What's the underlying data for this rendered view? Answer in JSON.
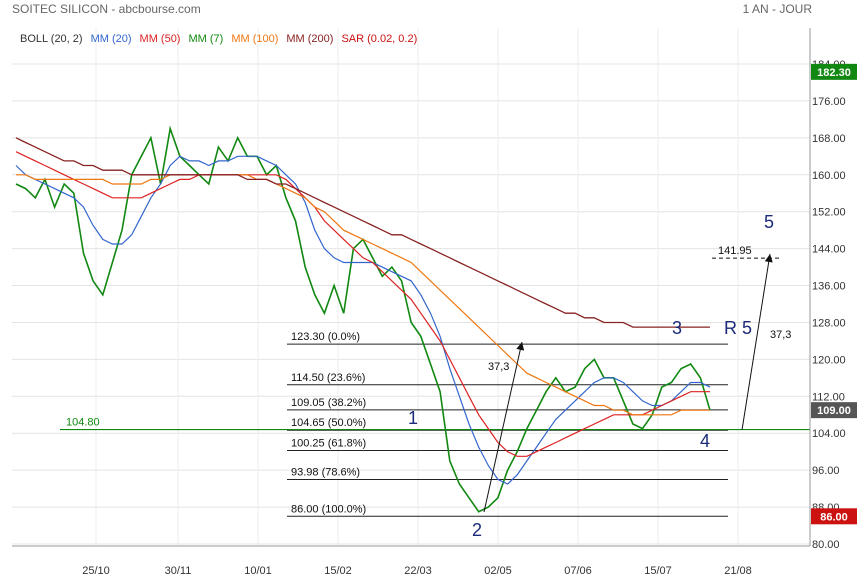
{
  "header": {
    "title": "SOITEC SILICON - abcbourse.com",
    "period": "1 AN - JOUR"
  },
  "legend": [
    {
      "label": "BOLL (20, 2)",
      "color": "#333333"
    },
    {
      "label": "MM (20)",
      "color": "#3366cc"
    },
    {
      "label": "MM (50)",
      "color": "#dd2222"
    },
    {
      "label": "MM (7)",
      "color": "#118811"
    },
    {
      "label": "MM (100)",
      "color": "#ee7711"
    },
    {
      "label": "MM (200)",
      "color": "#882222"
    },
    {
      "label": "SAR (0.02, 0.2)",
      "color": "#cc1111"
    }
  ],
  "chart_data": {
    "type": "line",
    "y_ticks": [
      "80.00",
      "88.00",
      "96.00",
      "104.00",
      "112.00",
      "120.00",
      "128.00",
      "136.00",
      "144.00",
      "152.00",
      "160.00",
      "168.00",
      "176.00",
      "184.00"
    ],
    "x_ticks": [
      "25/10",
      "30/11",
      "10/01",
      "15/02",
      "22/03",
      "02/05",
      "07/06",
      "15/07",
      "21/08"
    ],
    "ylim": [
      80,
      184
    ],
    "current_price": "109.00",
    "high_marker": "182.30",
    "low_marker": "86.00",
    "support_line": {
      "label": "104.80",
      "value": 104.8
    },
    "fibonacci": [
      {
        "label": "123.30  (0.0%)",
        "value": 123.3
      },
      {
        "label": "114.50  (23.6%)",
        "value": 114.5
      },
      {
        "label": "109.05  (38.2%)",
        "value": 109.05
      },
      {
        "label": "104.65  (50.0%)",
        "value": 104.65
      },
      {
        "label": "100.25  (61.8%)",
        "value": 100.25
      },
      {
        "label": "93.98  (78.6%)",
        "value": 93.98
      },
      {
        "label": "86.00  (100.0%)",
        "value": 86.0
      }
    ],
    "target": {
      "label": "141.95",
      "value": 141.95
    },
    "waves": [
      "1",
      "2",
      "3",
      "4",
      "5",
      "R 5"
    ],
    "measures": [
      "37,3",
      "37,3"
    ],
    "series": [
      {
        "name": "Cours",
        "values": [
          158,
          157,
          155,
          159,
          153,
          158,
          156,
          143,
          137,
          134,
          141,
          148,
          160,
          164,
          168,
          158,
          170,
          164,
          162,
          160,
          158,
          166,
          163,
          168,
          164,
          164,
          160,
          162,
          155,
          150,
          140,
          134,
          130,
          136,
          130,
          144,
          146,
          142,
          138,
          140,
          137,
          128,
          125,
          119,
          113,
          98,
          93,
          90,
          87,
          88,
          90,
          96,
          100,
          105,
          109,
          113,
          116,
          113,
          114,
          118,
          120,
          116,
          116,
          111,
          106,
          105,
          108,
          114,
          115,
          118,
          119,
          116,
          109
        ]
      },
      {
        "name": "MM (20)",
        "values": [
          162,
          160,
          159,
          158,
          157,
          156,
          155,
          153,
          149,
          146,
          145,
          145,
          147,
          151,
          155,
          158,
          162,
          164,
          163,
          163,
          162,
          163,
          163,
          164,
          164,
          164,
          163,
          162,
          160,
          158,
          154,
          148,
          144,
          142,
          141,
          141,
          141,
          141,
          140,
          139,
          138,
          137,
          134,
          130,
          125,
          118,
          112,
          106,
          101,
          97,
          94,
          93,
          95,
          98,
          101,
          104,
          107,
          109,
          111,
          113,
          115,
          116,
          116,
          115,
          113,
          111,
          110,
          110,
          111,
          113,
          115,
          115,
          114
        ]
      },
      {
        "name": "MM (50)",
        "values": [
          165,
          164,
          163,
          162,
          161,
          160,
          159,
          158,
          157,
          156,
          155,
          155,
          155,
          155,
          156,
          157,
          158,
          159,
          159,
          160,
          160,
          160,
          160,
          160,
          160,
          160,
          160,
          160,
          159,
          157,
          155,
          153,
          150,
          148,
          146,
          144,
          142,
          141,
          139,
          137,
          135,
          133,
          130,
          127,
          124,
          120,
          116,
          112,
          108,
          105,
          102,
          100,
          99,
          99,
          100,
          101,
          102,
          103,
          104,
          105,
          106,
          107,
          108,
          108,
          108,
          108,
          109,
          110,
          111,
          112,
          113,
          113,
          113
        ]
      },
      {
        "name": "MM (100)",
        "values": [
          160,
          160,
          159,
          159,
          159,
          159,
          159,
          159,
          159,
          159,
          158,
          158,
          158,
          158,
          159,
          159,
          160,
          160,
          160,
          160,
          160,
          160,
          160,
          160,
          160,
          159,
          159,
          158,
          157,
          156,
          155,
          153,
          152,
          150,
          148,
          147,
          146,
          145,
          144,
          143,
          142,
          141,
          139,
          137,
          135,
          133,
          131,
          129,
          127,
          125,
          123,
          121,
          119,
          117,
          116,
          115,
          114,
          113,
          112,
          111,
          110,
          110,
          109,
          109,
          108,
          108,
          108,
          108,
          108,
          109,
          109,
          109,
          109
        ]
      },
      {
        "name": "MM (200)",
        "values": [
          168,
          167,
          166,
          165,
          164,
          163,
          163,
          162,
          162,
          161,
          161,
          161,
          160,
          160,
          160,
          160,
          160,
          160,
          160,
          160,
          160,
          160,
          160,
          160,
          159,
          159,
          159,
          158,
          158,
          157,
          156,
          155,
          154,
          153,
          152,
          151,
          150,
          149,
          148,
          147,
          147,
          146,
          145,
          144,
          143,
          142,
          141,
          140,
          139,
          138,
          137,
          136,
          135,
          134,
          133,
          132,
          131,
          130,
          130,
          129,
          129,
          128,
          128,
          128,
          127,
          127,
          127,
          127,
          127,
          127,
          127,
          127,
          127
        ]
      }
    ]
  }
}
